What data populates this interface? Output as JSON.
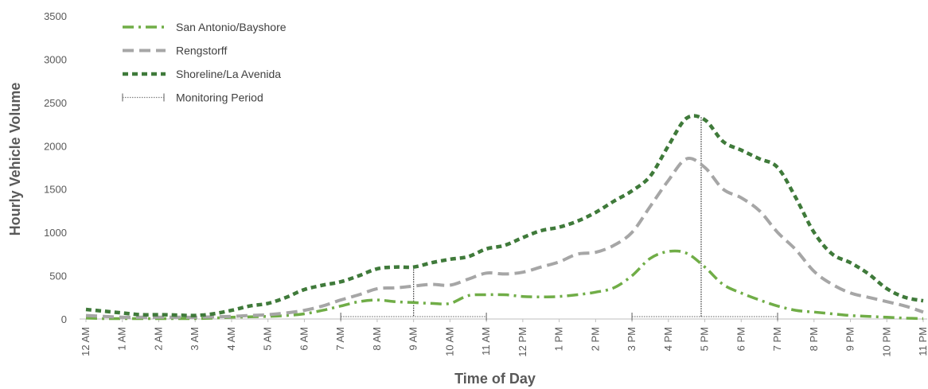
{
  "chart_data": {
    "type": "line",
    "title": "",
    "xlabel": "Time of Day",
    "ylabel": "Hourly Vehicle Volume",
    "ylim": [
      0,
      3500
    ],
    "yticks": [
      "0",
      "500",
      "1000",
      "1500",
      "2000",
      "2500",
      "3000",
      "3500"
    ],
    "grid": false,
    "legend_position": "top-left",
    "categories": [
      "12 AM",
      "1 AM",
      "2 AM",
      "3 AM",
      "4 AM",
      "5 AM",
      "6 AM",
      "7 AM",
      "8 AM",
      "9 AM",
      "10 AM",
      "11 AM",
      "12 PM",
      "1 PM",
      "2 PM",
      "3 PM",
      "4 PM",
      "5 PM",
      "6 PM",
      "7 PM",
      "8 PM",
      "9 PM",
      "10 PM",
      "11 PM"
    ],
    "series": [
      {
        "name": "San Antonio/Bayshore",
        "color": "#70ad47",
        "style": "dash-dot",
        "x": [
          0,
          0.5,
          1,
          1.5,
          2,
          2.5,
          3,
          3.5,
          4,
          4.5,
          5,
          5.5,
          6,
          6.5,
          7,
          7.5,
          8,
          8.5,
          9,
          9.5,
          10,
          10.5,
          11,
          11.5,
          12,
          12.5,
          13,
          13.5,
          14,
          14.5,
          15,
          15.5,
          16,
          16.5,
          17,
          17.5,
          18,
          18.5,
          19,
          19.5,
          20,
          20.5,
          21,
          21.5,
          22,
          22.5,
          23
        ],
        "values": [
          10,
          5,
          5,
          5,
          5,
          5,
          5,
          10,
          20,
          25,
          30,
          40,
          60,
          100,
          150,
          200,
          220,
          200,
          190,
          180,
          180,
          270,
          280,
          280,
          260,
          255,
          260,
          280,
          310,
          360,
          500,
          700,
          780,
          760,
          600,
          400,
          300,
          220,
          150,
          100,
          80,
          60,
          40,
          30,
          20,
          10,
          5
        ]
      },
      {
        "name": "Rengstorff",
        "color": "#a6a6a6",
        "style": "dashed",
        "x": [
          0,
          0.5,
          1,
          1.5,
          2,
          2.5,
          3,
          3.5,
          4,
          4.5,
          5,
          5.5,
          6,
          6.5,
          7,
          7.5,
          8,
          8.5,
          9,
          9.5,
          10,
          10.5,
          11,
          11.5,
          12,
          12.5,
          13,
          13.5,
          14,
          14.5,
          15,
          15.5,
          16,
          16.5,
          17,
          17.5,
          18,
          18.5,
          19,
          19.5,
          20,
          20.5,
          21,
          21.5,
          22,
          22.5,
          23
        ],
        "values": [
          40,
          30,
          20,
          20,
          20,
          20,
          20,
          25,
          30,
          40,
          50,
          70,
          100,
          150,
          220,
          280,
          350,
          360,
          380,
          400,
          390,
          460,
          530,
          520,
          540,
          600,
          660,
          750,
          770,
          850,
          1000,
          1300,
          1600,
          1850,
          1750,
          1500,
          1400,
          1250,
          1000,
          800,
          550,
          400,
          300,
          250,
          200,
          150,
          80
        ]
      },
      {
        "name": "Shoreline/La Avenida",
        "color": "#3f7a3a",
        "style": "dotted",
        "x": [
          0,
          0.5,
          1,
          1.5,
          2,
          2.5,
          3,
          3.5,
          4,
          4.5,
          5,
          5.5,
          6,
          6.5,
          7,
          7.5,
          8,
          8.5,
          9,
          9.5,
          10,
          10.5,
          11,
          11.5,
          12,
          12.5,
          13,
          13.5,
          14,
          14.5,
          15,
          15.5,
          16,
          16.5,
          17,
          17.5,
          18,
          18.5,
          19,
          19.5,
          20,
          20.5,
          21,
          21.5,
          22,
          22.5,
          23
        ],
        "values": [
          110,
          90,
          70,
          50,
          50,
          45,
          40,
          60,
          100,
          150,
          180,
          250,
          340,
          390,
          430,
          500,
          580,
          600,
          600,
          650,
          690,
          720,
          810,
          850,
          940,
          1020,
          1060,
          1130,
          1230,
          1360,
          1480,
          1650,
          2000,
          2320,
          2300,
          2050,
          1950,
          1850,
          1750,
          1400,
          1000,
          750,
          650,
          520,
          350,
          250,
          210
        ]
      }
    ],
    "monitoring": {
      "name": "Monitoring Period",
      "color": "#808080",
      "periods": [
        {
          "start": 7,
          "end": 11,
          "peak": 9,
          "peak_value": 600
        },
        {
          "start": 15,
          "end": 19,
          "peak": 16.9,
          "peak_value": 2330
        }
      ]
    }
  }
}
